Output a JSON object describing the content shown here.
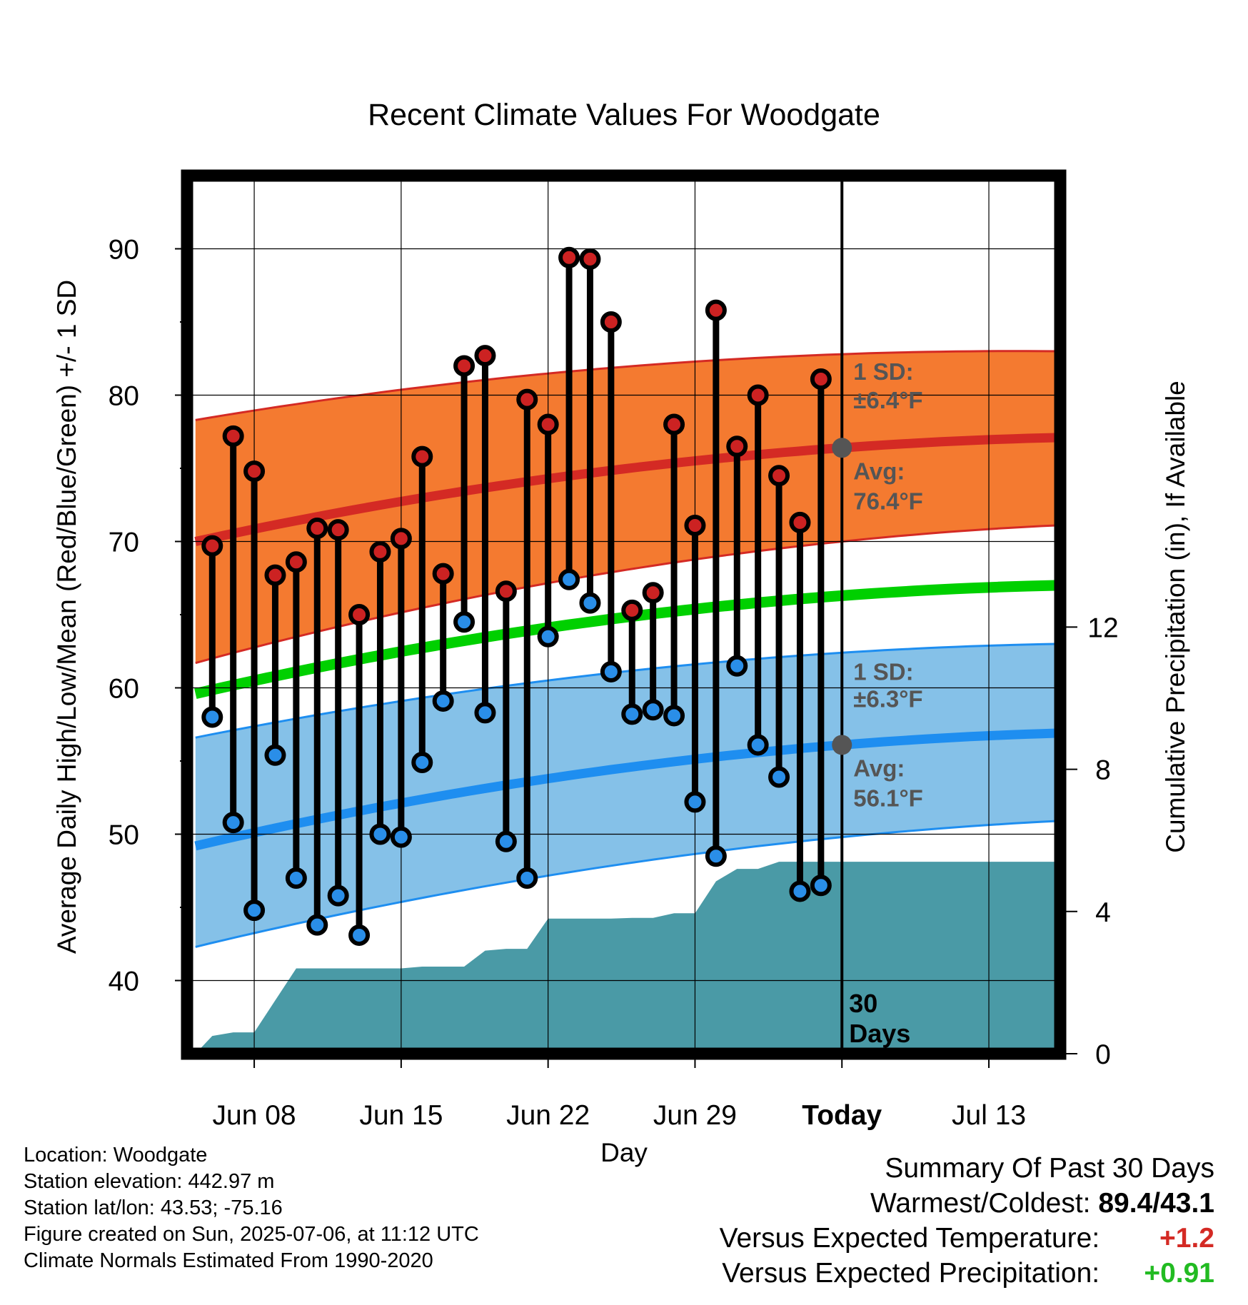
{
  "chart_data": {
    "type": "line",
    "title": "Recent Climate Values For Woodgate",
    "xlabel": "Day",
    "ylabel_left": "Average Daily High/Low/Mean (Red/Blue/Green) +/- 1 SD",
    "ylabel_right": "Cumulative Precipitation (in), If Available",
    "x_ticks": [
      {
        "day": 8,
        "label": "Jun 08",
        "bold": false
      },
      {
        "day": 15,
        "label": "Jun 15",
        "bold": false
      },
      {
        "day": 22,
        "label": "Jun 22",
        "bold": false
      },
      {
        "day": 29,
        "label": "Jun 29",
        "bold": false
      },
      {
        "day": 36,
        "label": "Today",
        "bold": true
      },
      {
        "day": 43,
        "label": "Jul 13",
        "bold": false
      }
    ],
    "xlim": [
      4.8,
      46.4
    ],
    "ylim_left": [
      35,
      95
    ],
    "y_ticks_left": [
      40,
      50,
      60,
      70,
      80,
      90
    ],
    "ylim_right": [
      0,
      24.7
    ],
    "y_ticks_right": [
      0,
      4,
      8,
      12
    ],
    "grid": true,
    "days": [
      6,
      7,
      8,
      9,
      10,
      11,
      12,
      13,
      14,
      15,
      16,
      17,
      18,
      19,
      20,
      21,
      22,
      23,
      24,
      25,
      26,
      27,
      28,
      29,
      30,
      31,
      32,
      33,
      34,
      35
    ],
    "highs": [
      69.7,
      77.2,
      74.8,
      67.7,
      68.6,
      70.9,
      70.8,
      65.0,
      69.3,
      70.2,
      75.8,
      67.8,
      82.0,
      82.7,
      66.6,
      79.7,
      78.0,
      89.4,
      89.3,
      85.0,
      65.3,
      66.5,
      78.0,
      71.1,
      85.8,
      76.5,
      80.0,
      74.5,
      71.3,
      81.1
    ],
    "lows": [
      58.0,
      50.8,
      44.8,
      55.4,
      47.0,
      43.8,
      45.8,
      43.1,
      50.0,
      49.8,
      54.9,
      59.1,
      64.5,
      58.3,
      49.5,
      47.0,
      63.5,
      67.4,
      65.8,
      61.1,
      58.2,
      58.5,
      58.1,
      52.2,
      48.5,
      61.5,
      56.1,
      53.9,
      46.1,
      46.5
    ],
    "normals": {
      "days": [
        5.2,
        36,
        46.2
      ],
      "avg_high": [
        70.0,
        76.4,
        77.1
      ],
      "high_upper": [
        78.3,
        82.8,
        83.0
      ],
      "high_lower": [
        61.7,
        70.0,
        71.1
      ],
      "avg_low": [
        49.2,
        56.1,
        56.9
      ],
      "low_upper": [
        56.6,
        62.4,
        63.0
      ],
      "low_lower": [
        42.3,
        49.8,
        50.9
      ],
      "mean": [
        59.6,
        66.3,
        67.0
      ]
    },
    "precip_cumulative": {
      "days": [
        5.2,
        6.0,
        7.0,
        8.0,
        9.0,
        10.0,
        11.0,
        12.0,
        13.0,
        14.0,
        15.0,
        16.0,
        17.0,
        18.0,
        19.0,
        20.0,
        21.0,
        22.0,
        23.0,
        24.0,
        25.0,
        26.0,
        27.0,
        28.0,
        29.0,
        30.0,
        31.0,
        32.0,
        33.0,
        34.0,
        35.0,
        36.0,
        46.2
      ],
      "values": [
        0.0,
        0.5,
        0.6,
        0.6,
        1.5,
        2.4,
        2.4,
        2.4,
        2.4,
        2.4,
        2.4,
        2.45,
        2.45,
        2.45,
        2.9,
        2.95,
        2.95,
        3.8,
        3.8,
        3.8,
        3.8,
        3.82,
        3.82,
        3.95,
        3.95,
        4.85,
        5.2,
        5.2,
        5.4,
        5.4,
        5.4,
        5.4,
        5.4
      ]
    },
    "annotations": {
      "high_sd_label": "1 SD:",
      "high_sd_value": "±6.4°F",
      "high_avg_label": "Avg:",
      "high_avg_value": "76.4°F",
      "low_sd_label": "1 SD:",
      "low_sd_value": "±6.3°F",
      "low_avg_label": "Avg:",
      "low_avg_value": "56.1°F",
      "days_count": "30",
      "days_word": "Days"
    },
    "colors": {
      "high_band": "#f47a30",
      "high_line": "#d42a24",
      "low_band": "#85c1e8",
      "low_line": "#1e8ef0",
      "mean_line": "#00d000",
      "precip_fill": "#4a9aa6",
      "high_dot": "#cc2222",
      "low_dot": "#2a8ee8",
      "marker_today": "#555555"
    }
  },
  "info": {
    "location": "Location: Woodgate",
    "elevation": "Station elevation: 442.97 m",
    "latlon": "Station lat/lon: 43.53; -75.16",
    "created": "Figure created on Sun, 2025-07-06, at 11:12 UTC",
    "normals": "Climate Normals Estimated From 1990-2020"
  },
  "summary": {
    "heading": "Summary Of Past 30 Days",
    "warmest_label": "Warmest/Coldest:",
    "warmest_value": "89.4/43.1",
    "temp_label": "Versus Expected Temperature:",
    "temp_value": "+1.2",
    "temp_color": "#d42a24",
    "precip_label": "Versus Expected Precipitation:",
    "precip_value": "+0.91",
    "precip_color": "#22bb22"
  }
}
